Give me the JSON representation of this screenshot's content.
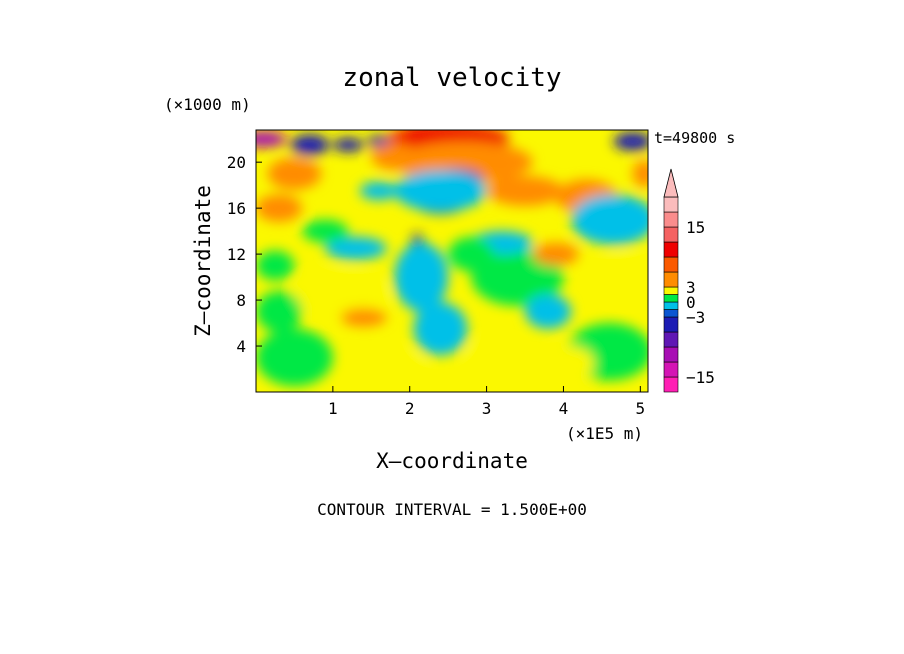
{
  "chart_data": {
    "type": "heatmap",
    "title": "zonal velocity",
    "xlabel": "X—coordinate",
    "ylabel": "Z—coordinate",
    "x_unit_label": "(×1E5 m)",
    "y_unit_label": "(×1000 m)",
    "time_label": "t=49800 s",
    "footer": "CONTOUR INTERVAL = 1.500E+00",
    "xlim": [
      0,
      5.1
    ],
    "ylim": [
      0,
      22.8
    ],
    "x_ticks": [
      "1",
      "2",
      "3",
      "4",
      "5"
    ],
    "y_ticks": [
      "4",
      "8",
      "12",
      "16",
      "20"
    ],
    "contour_interval": 1.5,
    "colorbar": {
      "tick_labels": [
        "15",
        "3",
        "0",
        "−3",
        "−15"
      ],
      "tick_values": [
        15,
        3,
        0,
        -3,
        -15
      ],
      "bins": [
        {
          "min": -18,
          "max": -15,
          "color": "#ff1fb4"
        },
        {
          "min": -15,
          "max": -12,
          "color": "#d415b4"
        },
        {
          "min": -12,
          "max": -9,
          "color": "#a80fb4"
        },
        {
          "min": -9,
          "max": -6,
          "color": "#6018b4"
        },
        {
          "min": -6,
          "max": -3,
          "color": "#1c1cb4"
        },
        {
          "min": -3,
          "max": -1.5,
          "color": "#0a56d2"
        },
        {
          "min": -1.5,
          "max": 0,
          "color": "#00c0e8"
        },
        {
          "min": 0,
          "max": 1.5,
          "color": "#00e845"
        },
        {
          "min": 1.5,
          "max": 3,
          "color": "#fbf800"
        },
        {
          "min": 3,
          "max": 6,
          "color": "#ff8c00"
        },
        {
          "min": 6,
          "max": 9,
          "color": "#fb5a00"
        },
        {
          "min": 9,
          "max": 12,
          "color": "#ef0000"
        },
        {
          "min": 12,
          "max": 15,
          "color": "#f56262"
        },
        {
          "min": 15,
          "max": 18,
          "color": "#fa8c8c"
        },
        {
          "min": 18,
          "max": 21,
          "color": "#fbbcbc"
        }
      ],
      "over_color": "#fbbcbc"
    },
    "regions": [
      {
        "x": 2.5,
        "z": 22,
        "rx": 0.8,
        "rz": 1.3,
        "value": 9
      },
      {
        "x": 2.7,
        "z": 20,
        "rx": 0.9,
        "rz": 1.8,
        "value": 4
      },
      {
        "x": 0.1,
        "z": 22,
        "rx": 0.3,
        "rz": 0.7,
        "value": -10
      },
      {
        "x": 0.7,
        "z": 21.5,
        "rx": 0.25,
        "rz": 0.9,
        "value": -5
      },
      {
        "x": 1.2,
        "z": 21.5,
        "rx": 0.2,
        "rz": 0.6,
        "value": -5
      },
      {
        "x": 1.6,
        "z": 21.8,
        "rx": 0.15,
        "rz": 0.5,
        "value": -4
      },
      {
        "x": 0.5,
        "z": 19,
        "rx": 0.35,
        "rz": 1.4,
        "value": 4
      },
      {
        "x": 0.3,
        "z": 16,
        "rx": 0.3,
        "rz": 1.2,
        "value": 5
      },
      {
        "x": 2.6,
        "z": 18.5,
        "rx": 0.35,
        "rz": 0.9,
        "value": -5
      },
      {
        "x": 2.4,
        "z": 16.5,
        "rx": 0.35,
        "rz": 1.0,
        "value": -5
      },
      {
        "x": 2.4,
        "z": 17.5,
        "rx": 0.6,
        "rz": 1.8,
        "value": -1
      },
      {
        "x": 3.5,
        "z": 17.5,
        "rx": 0.5,
        "rz": 1.3,
        "value": 4
      },
      {
        "x": 4.3,
        "z": 17,
        "rx": 0.4,
        "rz": 1.5,
        "value": 5
      },
      {
        "x": 4.6,
        "z": 14.5,
        "rx": 0.3,
        "rz": 1.5,
        "value": -4
      },
      {
        "x": 4.65,
        "z": 15,
        "rx": 0.55,
        "rz": 2.2,
        "value": -1
      },
      {
        "x": 4.9,
        "z": 21.8,
        "rx": 0.25,
        "rz": 0.8,
        "value": -5
      },
      {
        "x": 5.05,
        "z": 19,
        "rx": 0.15,
        "rz": 1.2,
        "value": 4
      },
      {
        "x": 2.1,
        "z": 12,
        "rx": 0.1,
        "rz": 1.8,
        "value": -5
      },
      {
        "x": 2.15,
        "z": 10,
        "rx": 0.35,
        "rz": 3.0,
        "value": -1
      },
      {
        "x": 2.4,
        "z": 6,
        "rx": 0.1,
        "rz": 1.0,
        "value": -5
      },
      {
        "x": 2.4,
        "z": 5.5,
        "rx": 0.35,
        "rz": 2.3,
        "value": -1
      },
      {
        "x": 0.25,
        "z": 11,
        "rx": 0.25,
        "rz": 1.3,
        "value": 1
      },
      {
        "x": 1.3,
        "z": 12.5,
        "rx": 0.4,
        "rz": 1.0,
        "value": -1
      },
      {
        "x": 1.1,
        "z": 8.5,
        "rx": 0.6,
        "rz": 2.0,
        "value": 2
      },
      {
        "x": 1.4,
        "z": 6.5,
        "rx": 0.3,
        "rz": 0.8,
        "value": 4
      },
      {
        "x": 0.5,
        "z": 3,
        "rx": 0.5,
        "rz": 2.5,
        "value": 1
      },
      {
        "x": 0.3,
        "z": 7,
        "rx": 0.3,
        "rz": 1.8,
        "value": 1
      },
      {
        "x": 1.8,
        "z": 2,
        "rx": 0.4,
        "rz": 1.5,
        "value": 2
      },
      {
        "x": 3.1,
        "z": 3,
        "rx": 0.35,
        "rz": 1.5,
        "value": 2
      },
      {
        "x": 3.4,
        "z": 10,
        "rx": 0.6,
        "rz": 2.5,
        "value": 1
      },
      {
        "x": 3.2,
        "z": 13,
        "rx": 0.4,
        "rz": 1.0,
        "value": -1
      },
      {
        "x": 3.8,
        "z": 7,
        "rx": 0.3,
        "rz": 1.5,
        "value": -1
      },
      {
        "x": 4.6,
        "z": 3.5,
        "rx": 0.55,
        "rz": 2.5,
        "value": 1
      },
      {
        "x": 4.1,
        "z": 2.5,
        "rx": 0.3,
        "rz": 1.5,
        "value": 2
      },
      {
        "x": 4.8,
        "z": 10,
        "rx": 0.4,
        "rz": 2.0,
        "value": 2
      },
      {
        "x": 2.8,
        "z": 12,
        "rx": 0.3,
        "rz": 1.5,
        "value": 1
      },
      {
        "x": 3.9,
        "z": 12,
        "rx": 0.3,
        "rz": 1.0,
        "value": 4
      },
      {
        "x": 1.8,
        "z": 20.5,
        "rx": 0.3,
        "rz": 1.2,
        "value": 4
      },
      {
        "x": 1.6,
        "z": 17.5,
        "rx": 0.25,
        "rz": 0.8,
        "value": -1
      },
      {
        "x": 0.9,
        "z": 14,
        "rx": 0.3,
        "rz": 1.0,
        "value": 1
      }
    ]
  }
}
